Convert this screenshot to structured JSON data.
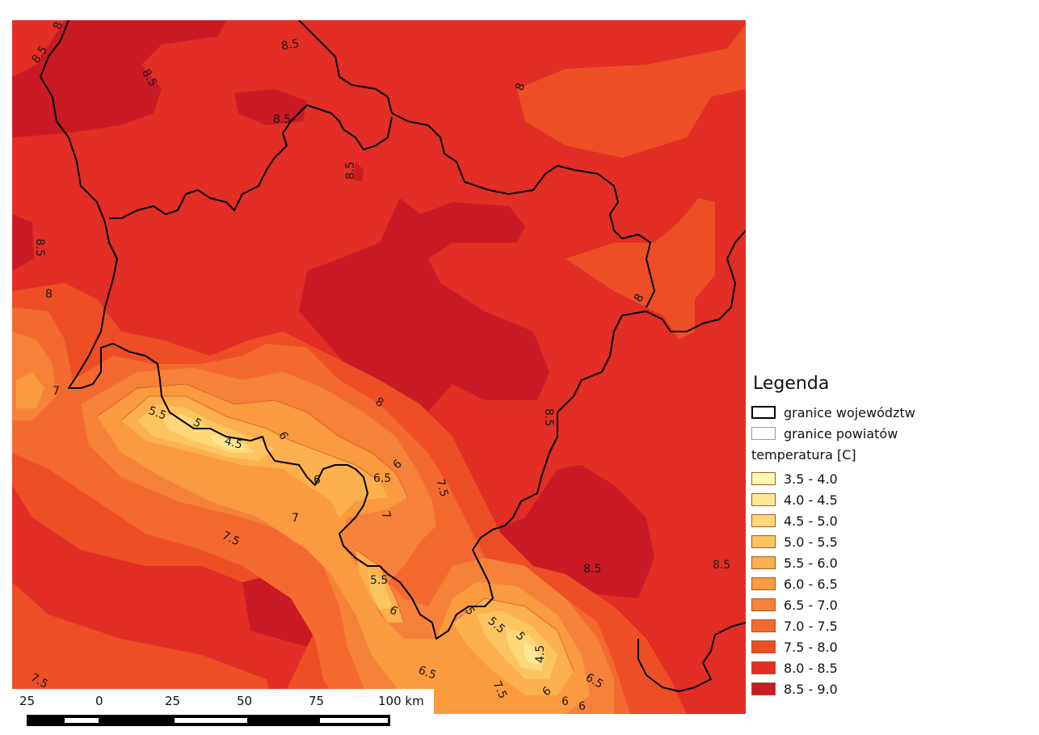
{
  "legend": {
    "title": "Legenda",
    "boundary_items": [
      {
        "label": "granice województw",
        "style": "voivodeship"
      },
      {
        "label": "granice powiatów",
        "style": "county"
      }
    ],
    "temperature_title": "temperatura [C]",
    "classes": [
      {
        "label": "3.5 - 4.0",
        "color": "#fffab0"
      },
      {
        "label": "4.0 - 4.5",
        "color": "#fee794"
      },
      {
        "label": "4.5 - 5.0",
        "color": "#fed878"
      },
      {
        "label": "5.0 - 5.5",
        "color": "#fdc560"
      },
      {
        "label": "5.5 - 6.0",
        "color": "#fcb04e"
      },
      {
        "label": "6.0 - 6.5",
        "color": "#f99b3e"
      },
      {
        "label": "6.5 - 7.0",
        "color": "#f6823a"
      },
      {
        "label": "7.0 - 7.5",
        "color": "#f36a30"
      },
      {
        "label": "7.5 - 8.0",
        "color": "#ee4e26"
      },
      {
        "label": "8.0 - 8.5",
        "color": "#e22e24"
      },
      {
        "label": "8.5 - 9.0",
        "color": "#c91a26"
      }
    ]
  },
  "contour_labels": [
    "8.5",
    "8",
    "8.5",
    "8.5",
    "8.5",
    "8",
    "8.5",
    "8",
    "8.5",
    "8",
    "7",
    "5.5",
    "5",
    "4.5",
    "6",
    "6",
    "6",
    "6.5",
    "7",
    "7.5",
    "8",
    "7.5",
    "7",
    "8.5",
    "5.5",
    "6",
    "5",
    "5.5",
    "5",
    "4.5",
    "6",
    "6.5",
    "6",
    "7.5",
    "6.5",
    "6",
    "8.5",
    "8.5",
    "7.5"
  ],
  "scale_bar": {
    "ticks": [
      "25",
      "0",
      "25",
      "50",
      "75",
      "100 km"
    ]
  }
}
